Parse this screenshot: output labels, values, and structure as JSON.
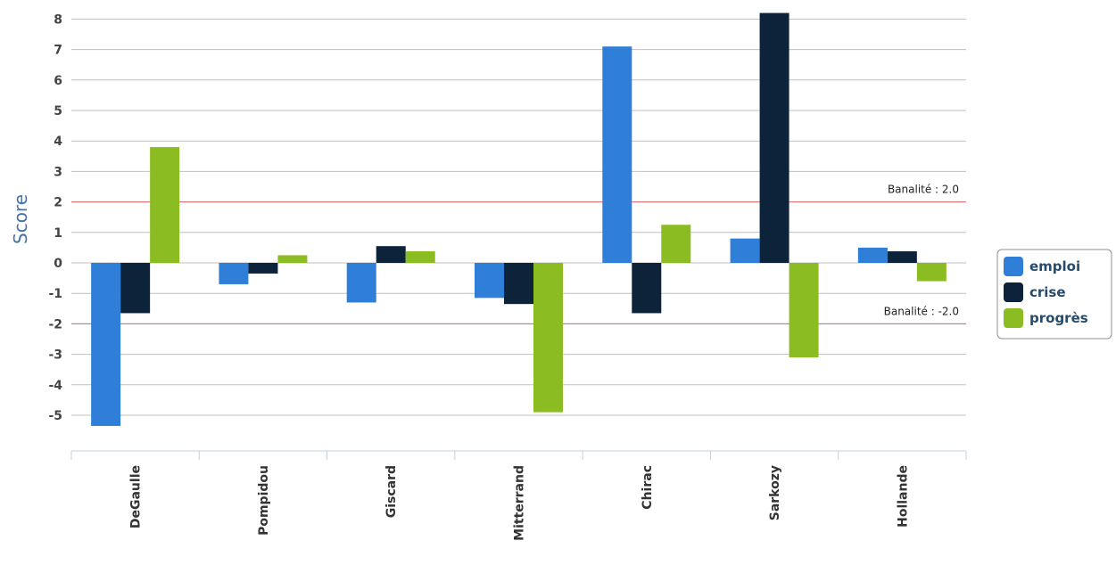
{
  "chart_data": {
    "type": "bar",
    "title": "",
    "xlabel": "",
    "ylabel": "Score",
    "ylim": [
      -6,
      8.2
    ],
    "yticks": [
      -5,
      -4,
      -3,
      -2,
      -1,
      0,
      1,
      2,
      3,
      4,
      5,
      6,
      7,
      8
    ],
    "grid": true,
    "legend_position": "right",
    "categories": [
      "DeGaulle",
      "Pompidou",
      "Giscard",
      "Mitterrand",
      "Chirac",
      "Sarkozy",
      "Hollande"
    ],
    "series": [
      {
        "name": "emploi",
        "color": "#2f7ed8",
        "values": [
          -5.35,
          -0.7,
          -1.3,
          -1.15,
          7.1,
          0.8,
          0.5
        ]
      },
      {
        "name": "crise",
        "color": "#0d233a",
        "values": [
          -1.65,
          -0.35,
          0.55,
          -1.35,
          -1.65,
          8.2,
          0.38
        ]
      },
      {
        "name": "progrès",
        "color": "#8bbc21",
        "values": [
          3.8,
          0.25,
          0.38,
          -4.9,
          1.25,
          -3.1,
          -0.6
        ]
      }
    ],
    "reference_lines": [
      {
        "value": 2.0,
        "label": "Banalité : 2.0",
        "color": "#e06666"
      },
      {
        "value": -2.0,
        "label": "Banalité : -2.0",
        "color": "#e06666"
      }
    ]
  }
}
